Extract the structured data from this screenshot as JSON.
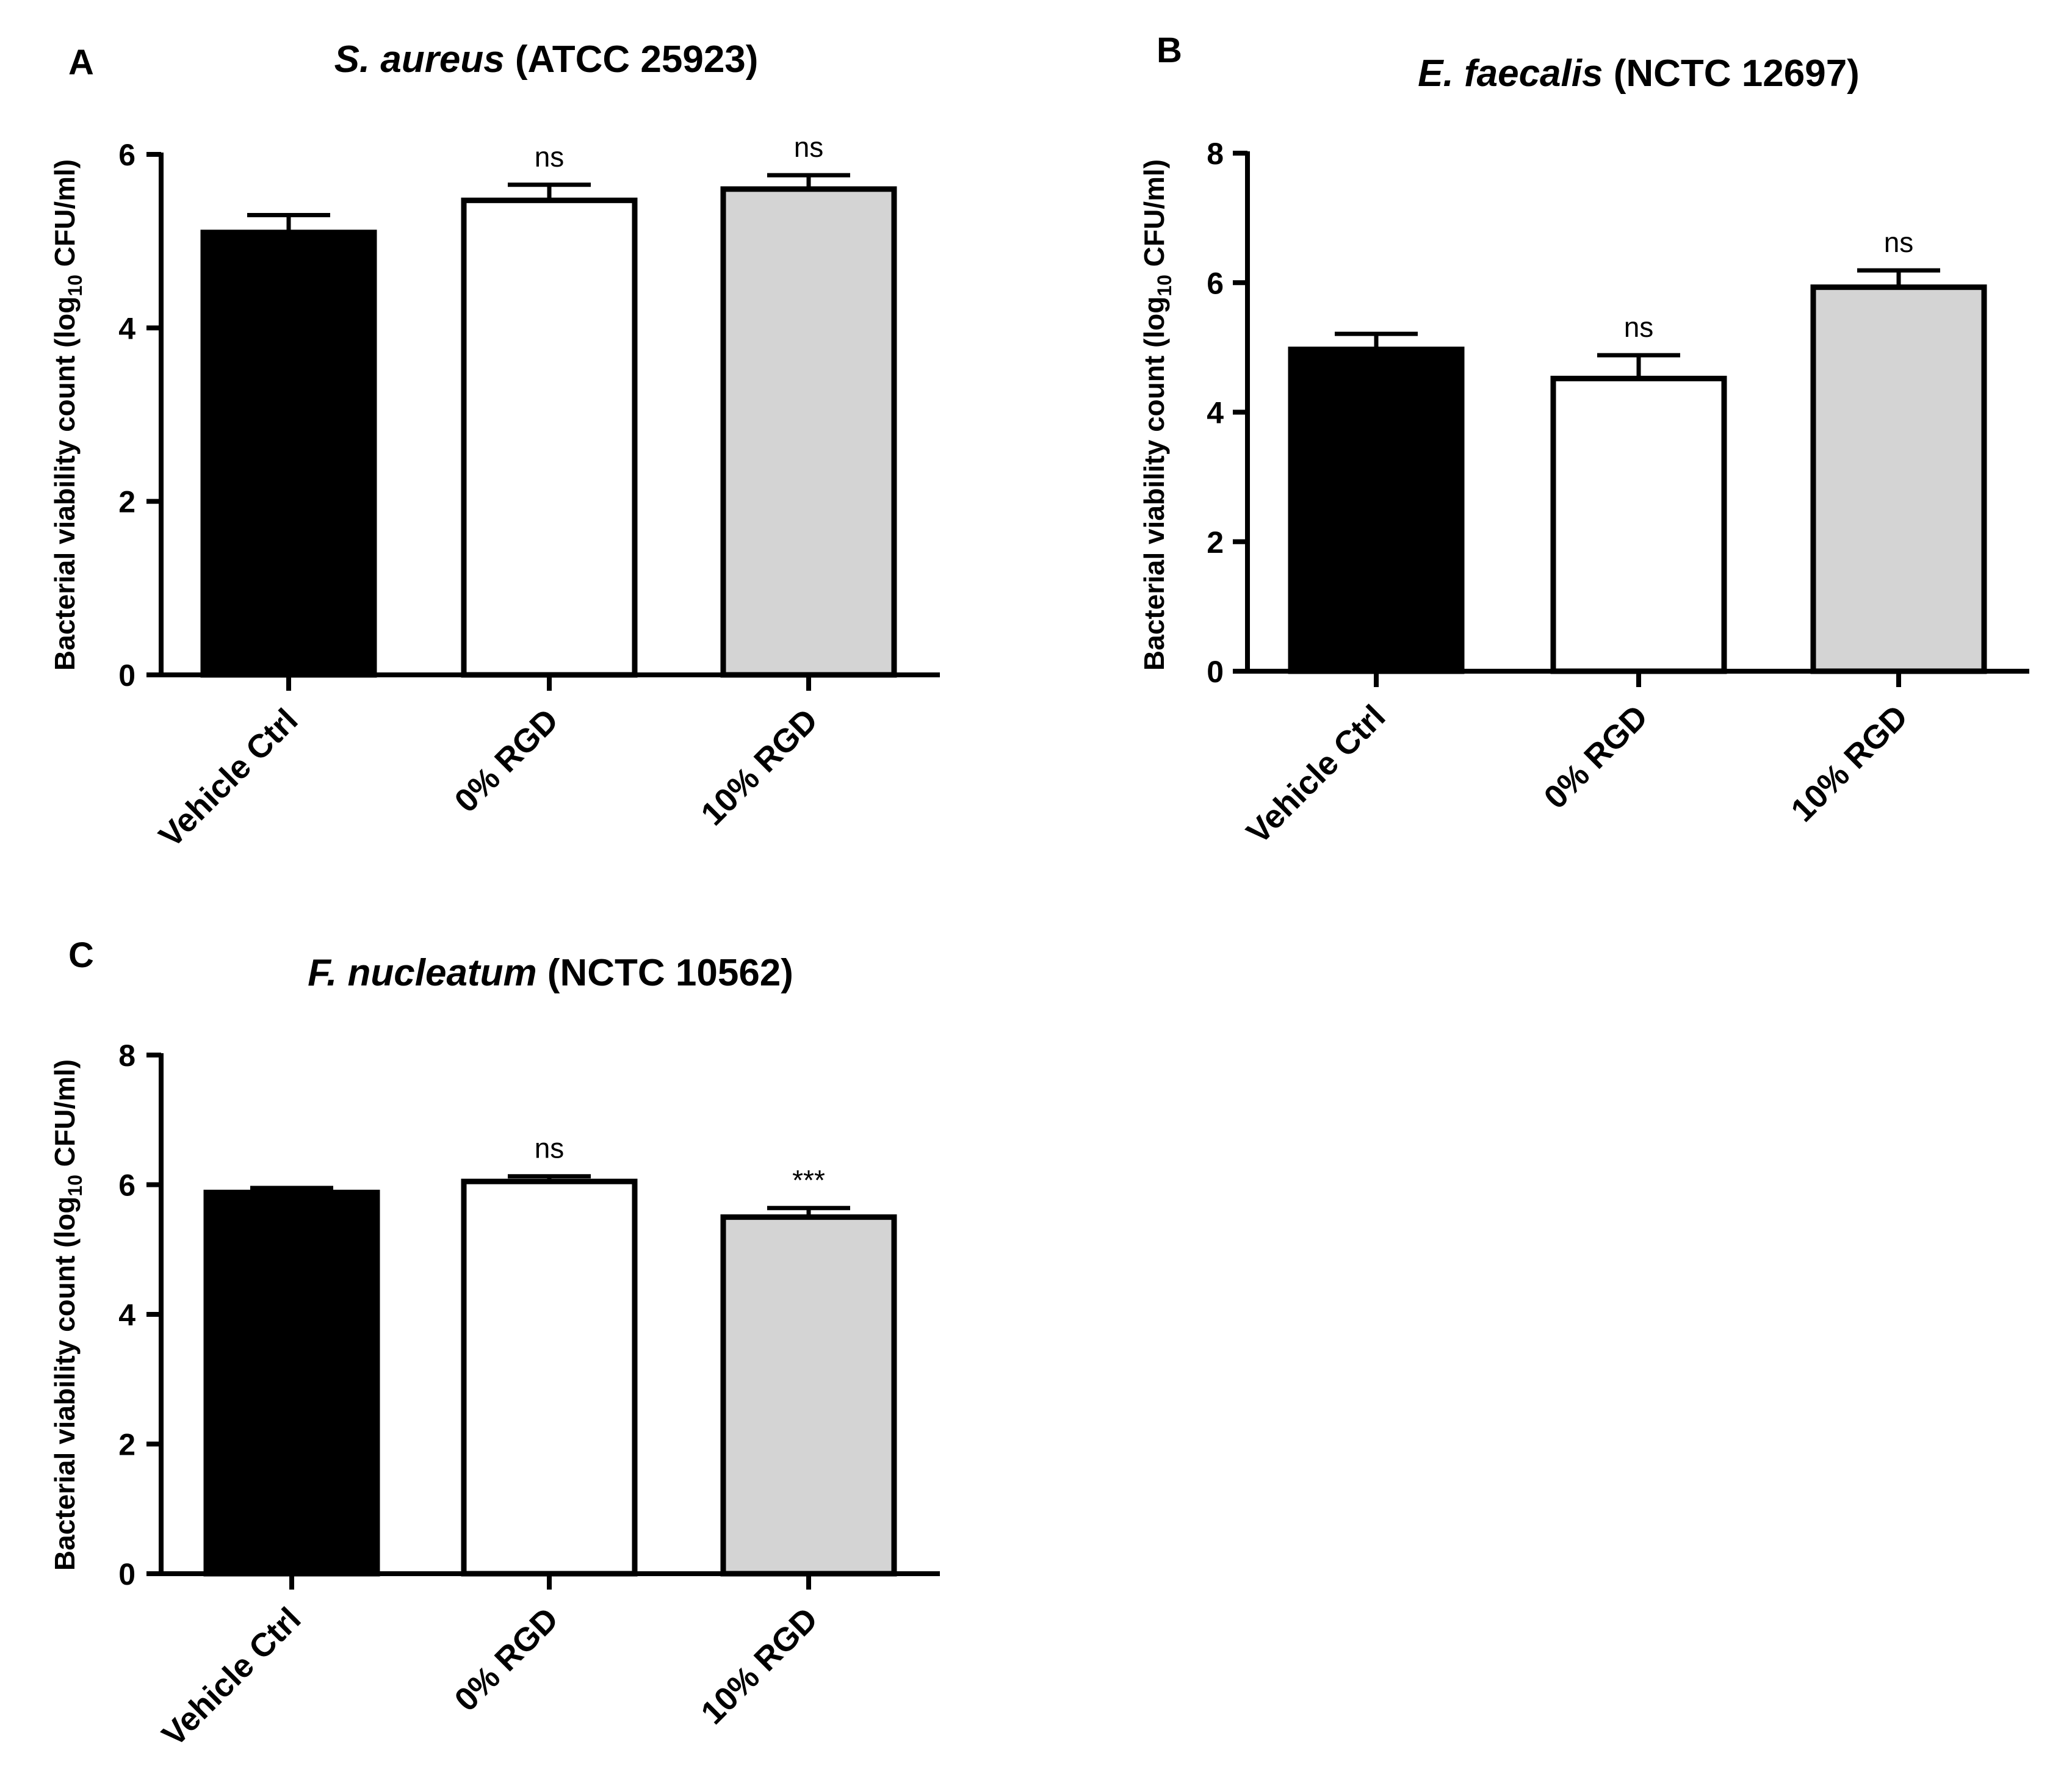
{
  "colors": {
    "bar_fills": [
      "#000000",
      "#ffffff",
      "#d4d4d4"
    ],
    "stroke": "#000000"
  },
  "chart_data": [
    {
      "type": "bar",
      "panel": "A",
      "title": {
        "species": "S. aureus",
        "strain": " (ATCC 25923)"
      },
      "ylabel": {
        "pre": "Bacterial viability count (log",
        "sub": "10",
        "post": " CFU/ml)"
      },
      "xlabel": "",
      "categories": [
        "Vehicle Ctrl",
        "0% RGD",
        "10% RGD"
      ],
      "values": [
        5.1,
        5.47,
        5.6
      ],
      "errors": [
        0.2,
        0.18,
        0.16
      ],
      "annotations": [
        "",
        "ns",
        "ns"
      ],
      "ylim": [
        0,
        6
      ],
      "yticks": [
        0,
        2,
        4,
        6
      ]
    },
    {
      "type": "bar",
      "panel": "B",
      "title": {
        "species": "E. faecalis",
        "strain": " (NCTC 12697)"
      },
      "ylabel": {
        "pre": "Bacterial viability count (log",
        "sub": "10",
        "post": " CFU/ml)"
      },
      "xlabel": "",
      "categories": [
        "Vehicle Ctrl",
        "0% RGD",
        "10% RGD"
      ],
      "values": [
        4.97,
        4.52,
        5.93
      ],
      "errors": [
        0.24,
        0.36,
        0.26
      ],
      "annotations": [
        "",
        "ns",
        "ns"
      ],
      "ylim": [
        0,
        8
      ],
      "yticks": [
        0,
        2,
        4,
        6,
        8
      ]
    },
    {
      "type": "bar",
      "panel": "C",
      "title": {
        "species": "F. nucleatum",
        "strain": " (NCTC 10562)"
      },
      "ylabel": {
        "pre": "Bacterial viability count (log",
        "sub": "10",
        "post": " CFU/ml)"
      },
      "xlabel": "",
      "categories": [
        "Vehicle Ctrl",
        "0% RGD",
        "10% RGD"
      ],
      "values": [
        5.88,
        6.05,
        5.5
      ],
      "errors": [
        0.07,
        0.08,
        0.14
      ],
      "annotations": [
        "",
        "ns",
        "***"
      ],
      "ylim": [
        0,
        8
      ],
      "yticks": [
        0,
        2,
        4,
        6,
        8
      ]
    }
  ]
}
